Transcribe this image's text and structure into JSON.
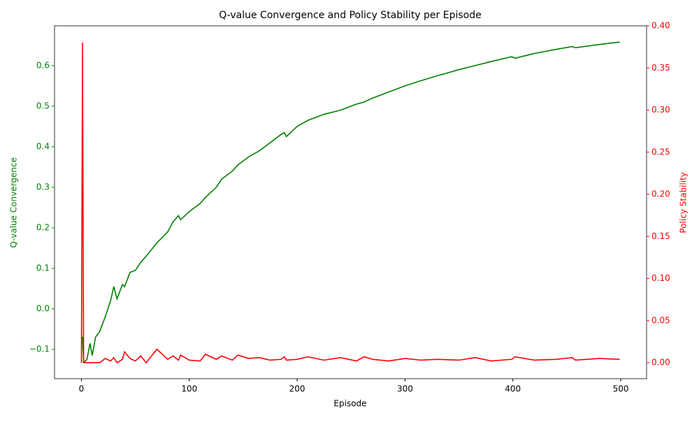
{
  "chart_data": {
    "type": "line",
    "title": "Q-value Convergence and Policy Stability per Episode",
    "xlabel": "Episode",
    "ylabel": "Q-value Convergence",
    "y2label": "Policy Stability",
    "x": [
      0,
      1,
      2,
      3,
      5,
      8,
      10,
      13,
      17,
      22,
      27,
      30,
      33,
      38,
      40,
      45,
      50,
      55,
      60,
      70,
      80,
      85,
      90,
      92,
      100,
      110,
      115,
      125,
      130,
      140,
      145,
      155,
      165,
      175,
      185,
      188,
      190,
      200,
      210,
      225,
      240,
      255,
      262,
      270,
      285,
      300,
      315,
      330,
      350,
      365,
      380,
      399,
      402,
      420,
      440,
      455,
      458,
      480,
      499
    ],
    "series": [
      {
        "name": "Q-value Convergence",
        "color": "green",
        "axis": "y",
        "values": [
          -0.07,
          -0.07,
          -0.13,
          -0.13,
          -0.125,
          -0.085,
          -0.115,
          -0.07,
          -0.055,
          -0.02,
          0.02,
          0.055,
          0.025,
          0.06,
          0.055,
          0.09,
          0.095,
          0.115,
          0.13,
          0.163,
          0.19,
          0.215,
          0.23,
          0.22,
          0.24,
          0.26,
          0.275,
          0.3,
          0.32,
          0.34,
          0.355,
          0.375,
          0.39,
          0.41,
          0.43,
          0.435,
          0.425,
          0.45,
          0.465,
          0.48,
          0.49,
          0.505,
          0.51,
          0.52,
          0.535,
          0.55,
          0.563,
          0.575,
          0.59,
          0.6,
          0.61,
          0.622,
          0.618,
          0.63,
          0.64,
          0.647,
          0.644,
          0.652,
          0.658
        ]
      },
      {
        "name": "Policy Stability",
        "color": "red",
        "axis": "y2",
        "values": [
          0,
          0.38,
          0,
          0,
          0,
          0,
          0,
          0,
          0,
          0.005,
          0.002,
          0.006,
          0,
          0.004,
          0.013,
          0.005,
          0.002,
          0.008,
          0,
          0.016,
          0.004,
          0.008,
          0.003,
          0.009,
          0.003,
          0.002,
          0.01,
          0.004,
          0.008,
          0.003,
          0.009,
          0.005,
          0.006,
          0.003,
          0.004,
          0.007,
          0.003,
          0.004,
          0.007,
          0.003,
          0.006,
          0.002,
          0.007,
          0.004,
          0.002,
          0.005,
          0.003,
          0.004,
          0.003,
          0.006,
          0.002,
          0.004,
          0.007,
          0.003,
          0.004,
          0.006,
          0.003,
          0.005,
          0.004
        ]
      }
    ],
    "xlim": [
      -24.95,
      523.95
    ],
    "xticks": [
      0,
      100,
      200,
      300,
      400,
      500
    ],
    "ylim": [
      -0.172,
      0.698
    ],
    "yticks": [
      {
        "value": -0.1,
        "label": "−0.1"
      },
      {
        "value": 0,
        "label": "0.0"
      },
      0.1,
      0.2,
      0.3,
      0.4,
      0.5,
      0.6
    ],
    "y2lim": [
      -0.019,
      0.4
    ],
    "y2ticks": [
      {
        "value": 0,
        "label": "0.00"
      },
      0.05,
      {
        "value": 0.1,
        "label": "0.10"
      },
      0.15,
      {
        "value": 0.2,
        "label": "0.20"
      },
      0.25,
      {
        "value": 0.3,
        "label": "0.30"
      },
      0.35,
      {
        "value": 0.4,
        "label": "0.40"
      }
    ]
  }
}
